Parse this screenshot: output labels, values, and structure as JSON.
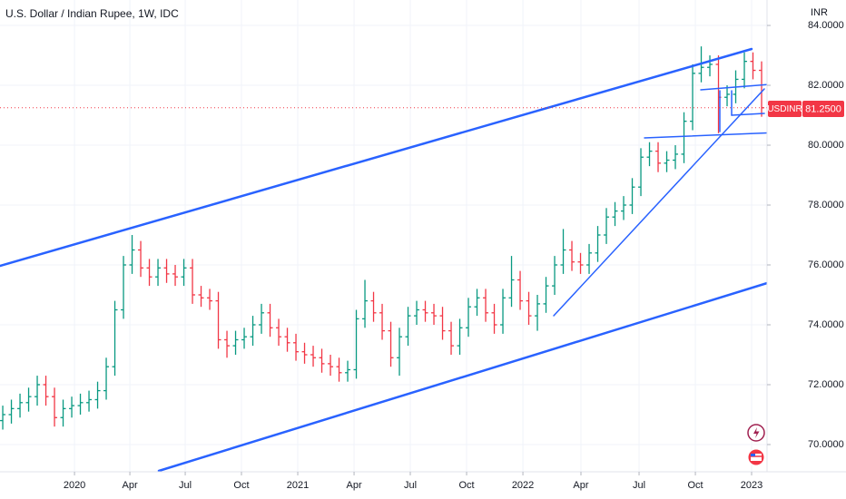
{
  "chart_data": {
    "type": "ohlc",
    "title": "U.S. Dollar / Indian Rupee, 1W, IDC",
    "y_axis_label": "INR",
    "symbol": "USDINR",
    "last_price": {
      "value": 81.25,
      "label": "81.2500"
    },
    "up_color": "#089981",
    "down_color": "#f23645",
    "grid": true,
    "ylim": [
      69.09,
      84.85
    ],
    "yticks": [
      {
        "value": 70,
        "label": "70.0000"
      },
      {
        "value": 72,
        "label": "72.0000"
      },
      {
        "value": 74,
        "label": "74.0000"
      },
      {
        "value": 76,
        "label": "76.0000"
      },
      {
        "value": 78,
        "label": "78.0000"
      },
      {
        "value": 80,
        "label": "80.0000"
      },
      {
        "value": 82,
        "label": "82.0000"
      },
      {
        "value": 84,
        "label": "84.0000"
      }
    ],
    "xlim": [
      -0.32,
      88.63
    ],
    "xticks": [
      {
        "value": 8.32,
        "label": "2020"
      },
      {
        "value": 14.74,
        "label": "Apr"
      },
      {
        "value": 21.16,
        "label": "Jul"
      },
      {
        "value": 27.68,
        "label": "Oct"
      },
      {
        "value": 34.21,
        "label": "2021"
      },
      {
        "value": 40.74,
        "label": "Apr"
      },
      {
        "value": 47.26,
        "label": "Jul"
      },
      {
        "value": 53.79,
        "label": "Oct"
      },
      {
        "value": 60.32,
        "label": "2022"
      },
      {
        "value": 67.05,
        "label": "Apr"
      },
      {
        "value": 73.79,
        "label": "Jul"
      },
      {
        "value": 80.32,
        "label": "Oct"
      },
      {
        "value": 86.84,
        "label": "2023"
      }
    ],
    "open": [
      70.8,
      71.0,
      71.2,
      71.4,
      71.6,
      72.0,
      71.6,
      70.9,
      71.2,
      71.3,
      71.4,
      71.5,
      71.8,
      72.6,
      74.5,
      76.0,
      76.5,
      75.9,
      75.6,
      75.9,
      75.7,
      75.6,
      75.9,
      75.0,
      74.9,
      74.8,
      73.5,
      73.3,
      73.5,
      73.6,
      74.0,
      74.4,
      73.9,
      73.6,
      73.4,
      73.1,
      73.0,
      72.9,
      72.7,
      72.6,
      72.4,
      72.5,
      74.2,
      74.8,
      74.4,
      73.8,
      72.9,
      73.6,
      74.3,
      74.5,
      74.4,
      74.3,
      73.8,
      73.3,
      73.9,
      74.6,
      74.9,
      74.4,
      74.0,
      74.9,
      75.5,
      74.8,
      74.3,
      74.7,
      75.3,
      76.0,
      76.5,
      76.1,
      76.0,
      76.4,
      77.0,
      77.6,
      77.8,
      78.0,
      78.6,
      79.6,
      79.8,
      79.4,
      79.5,
      79.7,
      80.8,
      82.4,
      82.6,
      82.7,
      81.6,
      81.7,
      82.2,
      82.8,
      82.5
    ],
    "high": [
      71.3,
      71.5,
      71.7,
      71.9,
      72.3,
      72.3,
      71.9,
      71.5,
      71.6,
      71.7,
      71.8,
      72.1,
      72.9,
      74.8,
      76.3,
      77.0,
      76.8,
      76.2,
      76.2,
      76.2,
      76.0,
      76.2,
      76.2,
      75.3,
      75.2,
      75.1,
      73.8,
      73.8,
      73.9,
      74.3,
      74.7,
      74.7,
      74.2,
      73.9,
      73.7,
      73.4,
      73.3,
      73.2,
      73.0,
      72.9,
      72.8,
      74.5,
      75.5,
      75.1,
      74.7,
      74.1,
      73.9,
      74.6,
      74.8,
      74.8,
      74.7,
      74.6,
      74.1,
      74.2,
      74.9,
      75.2,
      75.2,
      74.7,
      75.2,
      76.3,
      75.8,
      75.1,
      75.0,
      75.6,
      76.3,
      77.2,
      76.8,
      76.4,
      76.7,
      77.3,
      77.9,
      78.1,
      78.3,
      78.9,
      79.9,
      80.1,
      80.1,
      79.8,
      80.0,
      81.1,
      82.7,
      83.3,
      83.0,
      83.0,
      82.0,
      82.5,
      83.1,
      83.1,
      82.8
    ],
    "low": [
      70.5,
      70.7,
      70.9,
      71.1,
      71.3,
      71.3,
      70.6,
      70.6,
      70.9,
      71.0,
      71.1,
      71.2,
      71.5,
      72.3,
      74.2,
      75.7,
      75.6,
      75.3,
      75.3,
      75.4,
      75.3,
      75.3,
      74.7,
      74.6,
      74.5,
      73.2,
      72.9,
      73.0,
      73.2,
      73.3,
      73.7,
      73.6,
      73.3,
      73.1,
      72.8,
      72.7,
      72.6,
      72.4,
      72.3,
      72.1,
      72.1,
      72.2,
      73.9,
      74.1,
      73.5,
      72.6,
      72.3,
      73.3,
      74.0,
      74.1,
      74.0,
      73.5,
      73.0,
      73.0,
      73.6,
      74.3,
      74.1,
      73.7,
      73.7,
      74.6,
      74.5,
      74.0,
      73.8,
      74.4,
      75.0,
      75.7,
      75.8,
      75.7,
      75.7,
      76.1,
      76.7,
      77.3,
      77.5,
      77.7,
      78.3,
      79.3,
      79.1,
      79.1,
      79.2,
      79.4,
      80.5,
      82.1,
      82.3,
      80.4,
      81.3,
      81.4,
      81.9,
      82.2,
      80.95
    ],
    "close": [
      71.0,
      71.2,
      71.4,
      71.6,
      72.0,
      71.6,
      70.9,
      71.2,
      71.3,
      71.4,
      71.5,
      71.8,
      72.6,
      74.5,
      76.0,
      76.5,
      75.9,
      75.6,
      75.9,
      75.7,
      75.6,
      75.9,
      75.0,
      74.9,
      74.8,
      73.5,
      73.3,
      73.5,
      73.6,
      74.0,
      74.4,
      73.9,
      73.6,
      73.4,
      73.1,
      73.0,
      72.9,
      72.7,
      72.6,
      72.4,
      72.5,
      74.2,
      74.8,
      74.4,
      73.8,
      72.9,
      73.6,
      74.3,
      74.5,
      74.4,
      74.3,
      73.8,
      73.3,
      73.9,
      74.6,
      74.9,
      74.4,
      74.0,
      74.9,
      75.5,
      74.8,
      74.3,
      74.7,
      75.3,
      76.0,
      76.5,
      76.1,
      76.0,
      76.4,
      77.0,
      77.6,
      77.8,
      78.0,
      78.6,
      79.6,
      79.8,
      79.4,
      79.5,
      79.7,
      80.8,
      82.4,
      82.6,
      82.7,
      81.6,
      81.7,
      82.2,
      82.8,
      82.5,
      81.25
    ]
  }
}
